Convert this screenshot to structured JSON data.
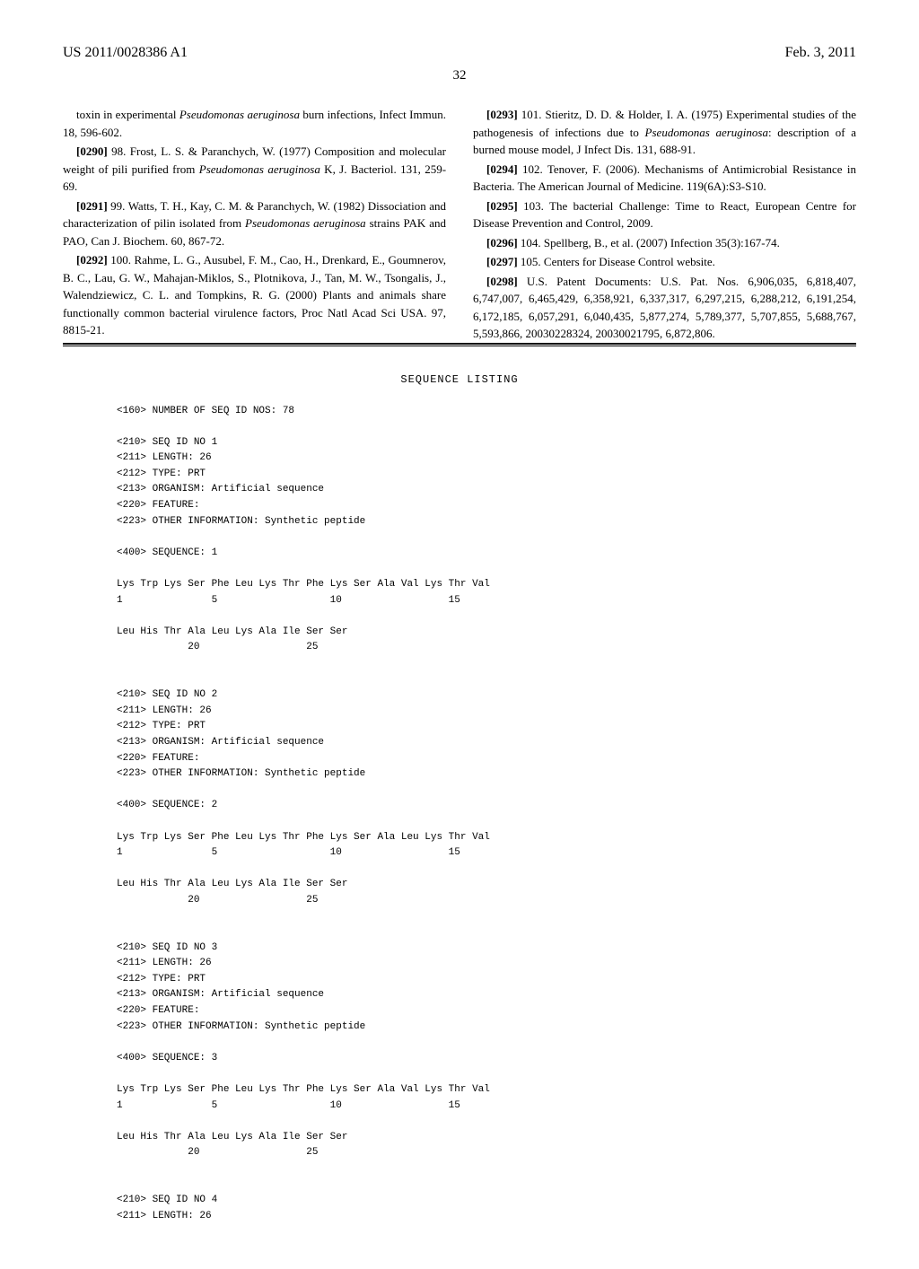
{
  "header": {
    "pub_number": "US 2011/0028386 A1",
    "pub_date": "Feb. 3, 2011",
    "page_number": "32"
  },
  "col1": {
    "p1": {
      "text": "toxin in experimental ",
      "italic": "Pseudomonas aeruginosa",
      "text2": " burn infections, Infect Immun. 18, 596-602."
    },
    "p2": {
      "num": "[0290]",
      "text": "  98. Frost, L. S. & Paranchych, W. (1977) Composition and molecular weight of pili purified from ",
      "italic": "Pseudomonas aeruginosa",
      "text2": " K, J. Bacteriol. 131, 259-69."
    },
    "p3": {
      "num": "[0291]",
      "text": "  99. Watts, T. H., Kay, C. M. & Paranchych, W. (1982) Dissociation and characterization of pilin isolated from ",
      "italic": "Pseudomonas aeruginosa",
      "text2": " strains PAK and PAO, Can J. Biochem. 60, 867-72."
    },
    "p4": {
      "num": "[0292]",
      "text": "  100. Rahme, L. G., Ausubel, F. M., Cao, H., Drenkard, E., Goumnerov, B. C., Lau, G. W., Mahajan-Miklos, S., Plotnikova, J., Tan, M. W., Tsongalis, J., Walendziewicz, C. L. and Tompkins, R. G. (2000) Plants and animals share functionally common bacterial virulence factors, Proc Natl Acad Sci USA. 97, 8815-21."
    }
  },
  "col2": {
    "p1": {
      "num": "[0293]",
      "text": "  101. Stieritz, D. D. & Holder, I. A. (1975) Experimental studies of the pathogenesis of infections due to ",
      "italic": "Pseudomonas aeruginosa",
      "text2": ": description of a burned mouse model, J Infect Dis. 131, 688-91."
    },
    "p2": {
      "num": "[0294]",
      "text": "  102. Tenover, F. (2006). Mechanisms of Antimicrobial Resistance in Bacteria. The American Journal of Medicine. 119(6A):S3-S10."
    },
    "p3": {
      "num": "[0295]",
      "text": "  103. The bacterial Challenge: Time to React, European Centre for Disease Prevention and Control, 2009."
    },
    "p4": {
      "num": "[0296]",
      "text": "  104. Spellberg, B., et al. (2007) Infection 35(3):167-74."
    },
    "p5": {
      "num": "[0297]",
      "text": "  105. Centers for Disease Control website."
    },
    "p6": {
      "num": "[0298]",
      "text": "  U.S. Patent Documents: U.S. Pat. Nos. 6,906,035, 6,818,407, 6,747,007, 6,465,429, 6,358,921, 6,337,317, 6,297,215, 6,288,212, 6,191,254, 6,172,185, 6,057,291, 6,040,435, 5,877,274, 5,789,377, 5,707,855, 5,688,767, 5,593,866, 20030228324, 20030021795, 6,872,806."
    }
  },
  "seq_listing": {
    "title": "SEQUENCE LISTING",
    "block1": "<160> NUMBER OF SEQ ID NOS: 78\n\n<210> SEQ ID NO 1\n<211> LENGTH: 26\n<212> TYPE: PRT\n<213> ORGANISM: Artificial sequence\n<220> FEATURE:\n<223> OTHER INFORMATION: Synthetic peptide\n\n<400> SEQUENCE: 1\n\nLys Trp Lys Ser Phe Leu Lys Thr Phe Lys Ser Ala Val Lys Thr Val\n1               5                   10                  15\n\nLeu His Thr Ala Leu Lys Ala Ile Ser Ser\n            20                  25\n\n\n<210> SEQ ID NO 2\n<211> LENGTH: 26\n<212> TYPE: PRT\n<213> ORGANISM: Artificial sequence\n<220> FEATURE:\n<223> OTHER INFORMATION: Synthetic peptide\n\n<400> SEQUENCE: 2\n\nLys Trp Lys Ser Phe Leu Lys Thr Phe Lys Ser Ala Leu Lys Thr Val\n1               5                   10                  15\n\nLeu His Thr Ala Leu Lys Ala Ile Ser Ser\n            20                  25\n\n\n<210> SEQ ID NO 3\n<211> LENGTH: 26\n<212> TYPE: PRT\n<213> ORGANISM: Artificial sequence\n<220> FEATURE:\n<223> OTHER INFORMATION: Synthetic peptide\n\n<400> SEQUENCE: 3\n\nLys Trp Lys Ser Phe Leu Lys Thr Phe Lys Ser Ala Val Lys Thr Val\n1               5                   10                  15\n\nLeu His Thr Ala Leu Lys Ala Ile Ser Ser\n            20                  25\n\n\n<210> SEQ ID NO 4\n<211> LENGTH: 26"
  }
}
